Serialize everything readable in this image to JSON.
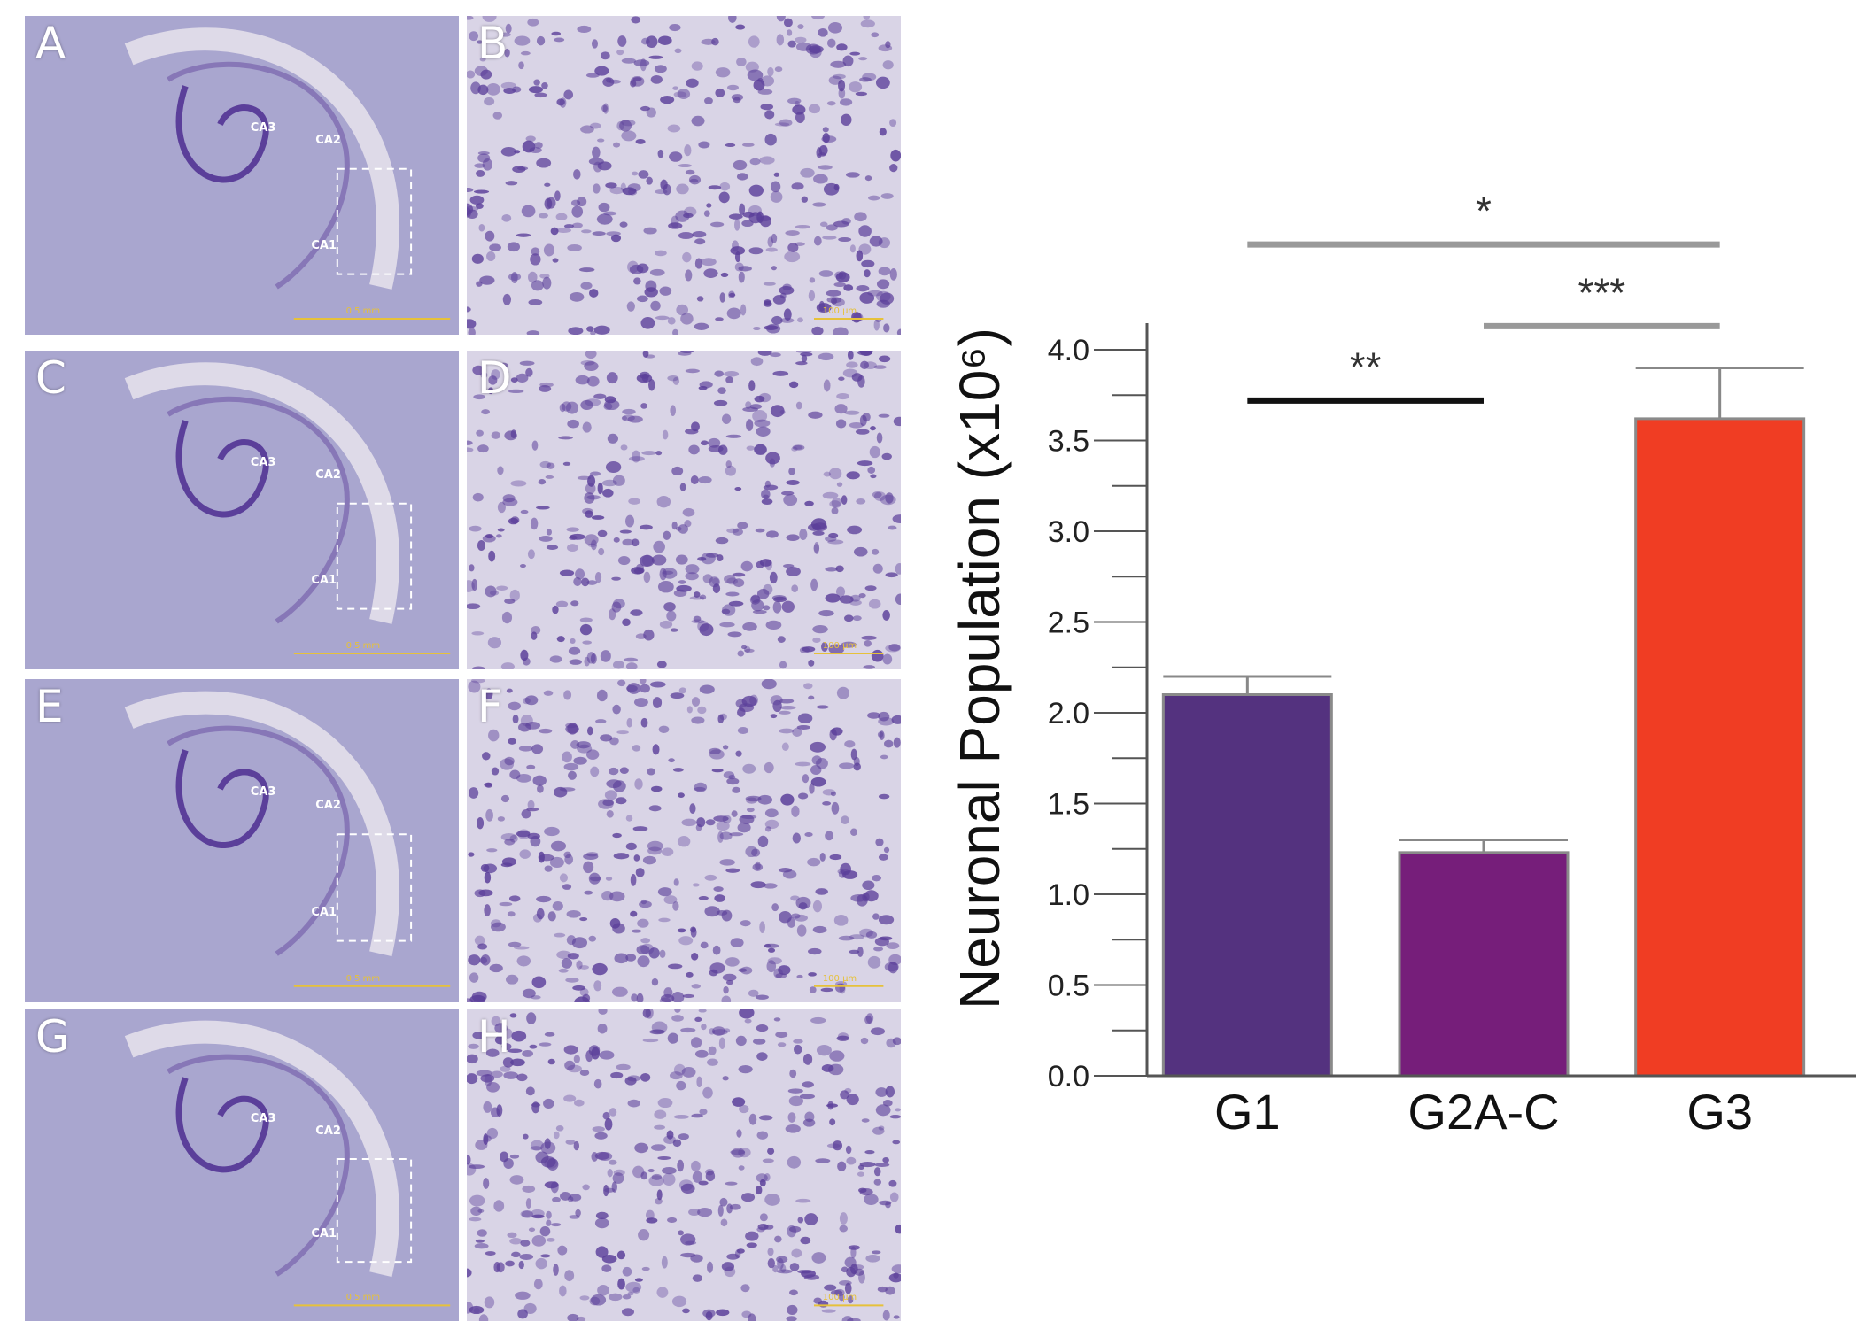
{
  "micrographs": {
    "panels": [
      {
        "letter": "A",
        "type": "overview",
        "regions": [
          "CA3",
          "CA2",
          "CA1"
        ],
        "scale": "0.5 mm"
      },
      {
        "letter": "B",
        "type": "detail",
        "scale": "100 μm"
      },
      {
        "letter": "C",
        "type": "overview",
        "regions": [
          "CA3",
          "CA2",
          "CA1"
        ],
        "scale": "0.5 mm"
      },
      {
        "letter": "D",
        "type": "detail",
        "scale": "100 μm"
      },
      {
        "letter": "E",
        "type": "overview",
        "regions": [
          "CA3",
          "CA2",
          "CA1"
        ],
        "scale": "0.5 mm"
      },
      {
        "letter": "F",
        "type": "detail",
        "scale": "100 μm"
      },
      {
        "letter": "G",
        "type": "overview",
        "regions": [
          "CA3",
          "CA2",
          "CA1"
        ],
        "scale": "0.5 mm"
      },
      {
        "letter": "H",
        "type": "detail",
        "scale": "100 μm"
      }
    ],
    "colors": {
      "tissue": "#a9a6cf",
      "stain": "#5b3f9a",
      "ventricle": "#e7e3ec"
    }
  },
  "chart_data": {
    "type": "bar",
    "title": "",
    "xlabel": "",
    "ylabel": "Neuronal Population (x10⁶)",
    "categories": [
      "G1",
      "G2A-C",
      "G3"
    ],
    "values": [
      2.1,
      1.23,
      3.62
    ],
    "errors": [
      0.1,
      0.07,
      0.28
    ],
    "colors": [
      "#54327f",
      "#761e7a",
      "#f03d23"
    ],
    "ylim": [
      0,
      4.0
    ],
    "yticks": [
      "0.0",
      "0.5",
      "1.0",
      "1.5",
      "2.0",
      "2.5",
      "3.0",
      "3.5",
      "4.0"
    ],
    "minor_ticks_per_major": 1,
    "grid": false,
    "significance": [
      {
        "from": "G1",
        "to": "G3",
        "label": "*",
        "color": "#999999"
      },
      {
        "from": "G2A-C",
        "to": "G3",
        "label": "***",
        "color": "#999999"
      },
      {
        "from": "G1",
        "to": "G2A-C",
        "label": "**",
        "color": "#111111"
      }
    ]
  }
}
